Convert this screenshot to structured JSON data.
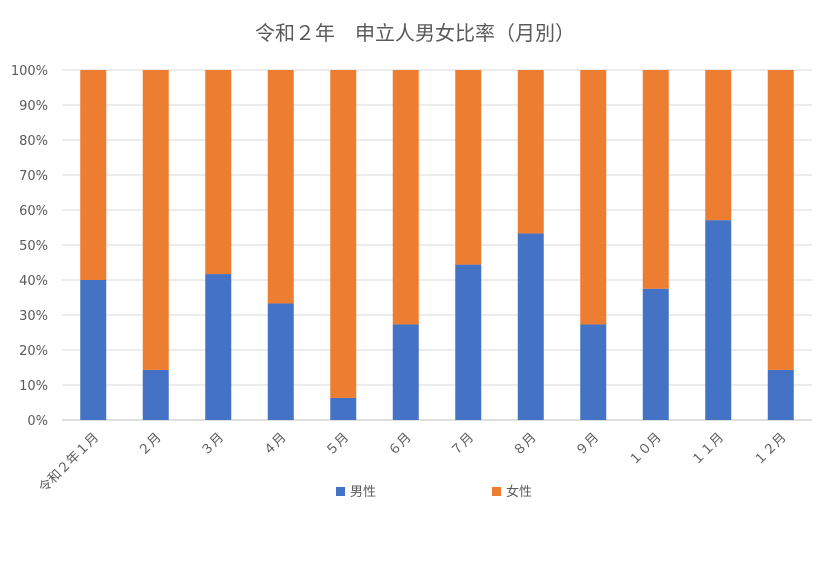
{
  "chart_data": {
    "type": "bar",
    "stacked": true,
    "title": "令和２年　申立人男女比率（月別）",
    "categories": [
      "令和２年１月",
      "２月",
      "３月",
      "４月",
      "５月",
      "６月",
      "７月",
      "８月",
      "９月",
      "１０月",
      "１１月",
      "１２月"
    ],
    "series": [
      {
        "name": "男性",
        "color": "#4472C4",
        "values": [
          40,
          14.3,
          41.7,
          33.3,
          6.3,
          27.3,
          44.4,
          53.3,
          27.3,
          37.5,
          57.1,
          14.3
        ]
      },
      {
        "name": "女性",
        "color": "#ED7D31",
        "values": [
          60,
          85.7,
          58.3,
          66.7,
          93.7,
          72.7,
          55.6,
          46.7,
          72.7,
          62.5,
          42.9,
          85.7
        ]
      }
    ],
    "ylim": [
      0,
      100
    ],
    "yticks": [
      "0%",
      "10%",
      "20%",
      "30%",
      "40%",
      "50%",
      "60%",
      "70%",
      "80%",
      "90%",
      "100%"
    ],
    "xlabel": "",
    "ylabel": "",
    "grid": true,
    "legend": "bottom"
  }
}
